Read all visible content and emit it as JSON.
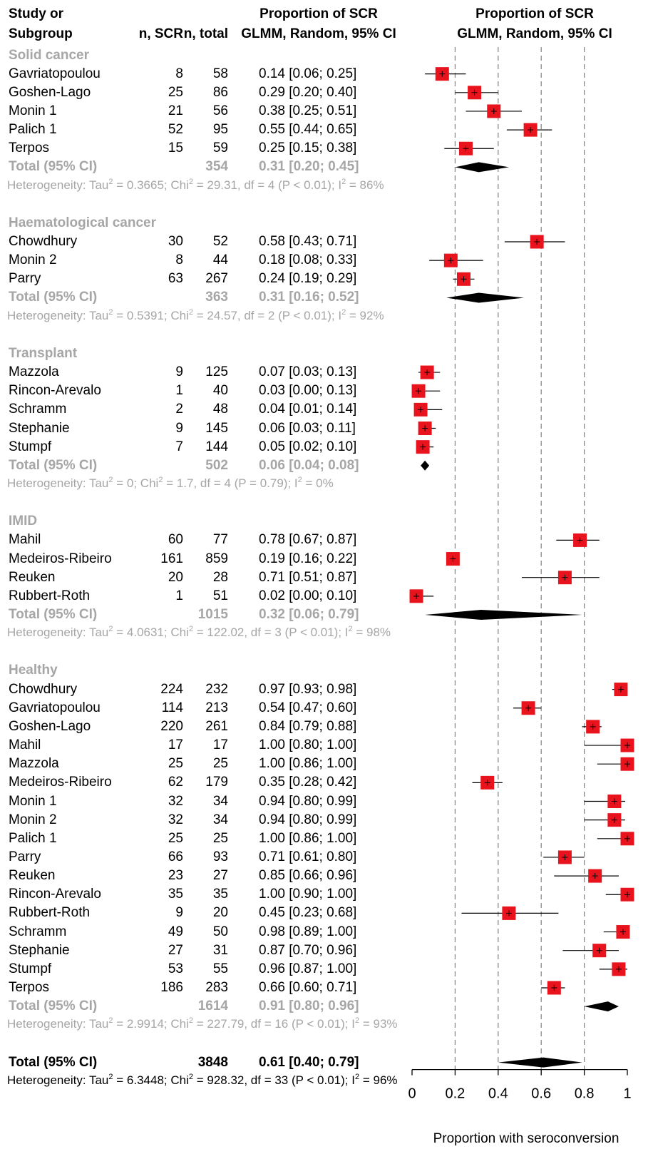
{
  "header": {
    "study_line1": "Study or",
    "study_line2": "Subgroup",
    "n_scr": "n, SCR",
    "n_total": "n, total",
    "prop_line1": "Proportion of SCR",
    "prop_line2": "GLMM, Random, 95% CI",
    "plot_line1": "Proportion of SCR",
    "plot_line2": "GLMM, Random, 95% CI"
  },
  "chart_data": {
    "type": "forest",
    "xlabel": "Proportion with seroconversion",
    "xlim": [
      0,
      1
    ],
    "xticks": [
      "0",
      "0.2",
      "0.4",
      "0.6",
      "0.8",
      "1"
    ],
    "reference_lines": [
      0.2,
      0.4,
      0.6,
      0.8
    ],
    "subgroups": [
      {
        "name": "Solid cancer",
        "studies": [
          {
            "study": "Gavriatopoulou",
            "n_scr": "8",
            "n_total": "58",
            "ci_text": "0.14 [0.06; 0.25]",
            "est": 0.14,
            "lo": 0.06,
            "hi": 0.25
          },
          {
            "study": "Goshen-Lago",
            "n_scr": "25",
            "n_total": "86",
            "ci_text": "0.29 [0.20; 0.40]",
            "est": 0.29,
            "lo": 0.2,
            "hi": 0.4
          },
          {
            "study": "Monin 1",
            "n_scr": "21",
            "n_total": "56",
            "ci_text": "0.38 [0.25; 0.51]",
            "est": 0.38,
            "lo": 0.25,
            "hi": 0.51
          },
          {
            "study": "Palich 1",
            "n_scr": "52",
            "n_total": "95",
            "ci_text": "0.55 [0.44; 0.65]",
            "est": 0.55,
            "lo": 0.44,
            "hi": 0.65
          },
          {
            "study": "Terpos",
            "n_scr": "15",
            "n_total": "59",
            "ci_text": "0.25 [0.15; 0.38]",
            "est": 0.25,
            "lo": 0.15,
            "hi": 0.38
          }
        ],
        "total": {
          "label": "Total (95% CI)",
          "n_total": "354",
          "ci_text": "0.31 [0.20; 0.45]",
          "est": 0.31,
          "lo": 0.2,
          "hi": 0.45
        },
        "het": {
          "tau": "0.3665",
          "chi": "29.31",
          "df": "4",
          "p": "P < 0.01",
          "i2": "86%"
        }
      },
      {
        "name": "Haematological cancer",
        "studies": [
          {
            "study": "Chowdhury",
            "n_scr": "30",
            "n_total": "52",
            "ci_text": "0.58 [0.43; 0.71]",
            "est": 0.58,
            "lo": 0.43,
            "hi": 0.71
          },
          {
            "study": "Monin 2",
            "n_scr": "8",
            "n_total": "44",
            "ci_text": "0.18 [0.08; 0.33]",
            "est": 0.18,
            "lo": 0.08,
            "hi": 0.33
          },
          {
            "study": "Parry",
            "n_scr": "63",
            "n_total": "267",
            "ci_text": "0.24 [0.19; 0.29]",
            "est": 0.24,
            "lo": 0.19,
            "hi": 0.29
          }
        ],
        "total": {
          "label": "Total (95% CI)",
          "n_total": "363",
          "ci_text": "0.31 [0.16; 0.52]",
          "est": 0.31,
          "lo": 0.16,
          "hi": 0.52
        },
        "het": {
          "tau": "0.5391",
          "chi": "24.57",
          "df": "2",
          "p": "P < 0.01",
          "i2": "92%"
        }
      },
      {
        "name": "Transplant",
        "studies": [
          {
            "study": "Mazzola",
            "n_scr": "9",
            "n_total": "125",
            "ci_text": "0.07 [0.03; 0.13]",
            "est": 0.07,
            "lo": 0.03,
            "hi": 0.13
          },
          {
            "study": "Rincon-Arevalo",
            "n_scr": "1",
            "n_total": "40",
            "ci_text": "0.03 [0.00; 0.13]",
            "est": 0.03,
            "lo": 0.0,
            "hi": 0.13
          },
          {
            "study": "Schramm",
            "n_scr": "2",
            "n_total": "48",
            "ci_text": "0.04 [0.01; 0.14]",
            "est": 0.04,
            "lo": 0.01,
            "hi": 0.14
          },
          {
            "study": "Stephanie",
            "n_scr": "9",
            "n_total": "145",
            "ci_text": "0.06 [0.03; 0.11]",
            "est": 0.06,
            "lo": 0.03,
            "hi": 0.11
          },
          {
            "study": "Stumpf",
            "n_scr": "7",
            "n_total": "144",
            "ci_text": "0.05 [0.02; 0.10]",
            "est": 0.05,
            "lo": 0.02,
            "hi": 0.1
          }
        ],
        "total": {
          "label": "Total (95% CI)",
          "n_total": "502",
          "ci_text": "0.06 [0.04; 0.08]",
          "est": 0.06,
          "lo": 0.04,
          "hi": 0.08
        },
        "het": {
          "tau": "0",
          "chi": "1.7",
          "df": "4",
          "p": "P = 0.79",
          "i2": "0%"
        }
      },
      {
        "name": "IMID",
        "studies": [
          {
            "study": "Mahil",
            "n_scr": "60",
            "n_total": "77",
            "ci_text": "0.78 [0.67; 0.87]",
            "est": 0.78,
            "lo": 0.67,
            "hi": 0.87
          },
          {
            "study": "Medeiros-Ribeiro",
            "n_scr": "161",
            "n_total": "859",
            "ci_text": "0.19 [0.16; 0.22]",
            "est": 0.19,
            "lo": 0.16,
            "hi": 0.22
          },
          {
            "study": "Reuken",
            "n_scr": "20",
            "n_total": "28",
            "ci_text": "0.71 [0.51; 0.87]",
            "est": 0.71,
            "lo": 0.51,
            "hi": 0.87
          },
          {
            "study": "Rubbert-Roth",
            "n_scr": "1",
            "n_total": "51",
            "ci_text": "0.02 [0.00; 0.10]",
            "est": 0.02,
            "lo": 0.0,
            "hi": 0.1
          }
        ],
        "total": {
          "label": "Total (95% CI)",
          "n_total": "1015",
          "ci_text": "0.32 [0.06; 0.79]",
          "est": 0.32,
          "lo": 0.06,
          "hi": 0.79
        },
        "het": {
          "tau": "4.0631",
          "chi": "122.02",
          "df": "3",
          "p": "P < 0.01",
          "i2": "98%"
        }
      },
      {
        "name": "Healthy",
        "studies": [
          {
            "study": "Chowdhury",
            "n_scr": "224",
            "n_total": "232",
            "ci_text": "0.97 [0.93; 0.98]",
            "est": 0.97,
            "lo": 0.93,
            "hi": 0.98
          },
          {
            "study": "Gavriatopoulou",
            "n_scr": "114",
            "n_total": "213",
            "ci_text": "0.54 [0.47; 0.60]",
            "est": 0.54,
            "lo": 0.47,
            "hi": 0.6
          },
          {
            "study": "Goshen-Lago",
            "n_scr": "220",
            "n_total": "261",
            "ci_text": "0.84 [0.79; 0.88]",
            "est": 0.84,
            "lo": 0.79,
            "hi": 0.88
          },
          {
            "study": "Mahil",
            "n_scr": "17",
            "n_total": "17",
            "ci_text": "1.00 [0.80; 1.00]",
            "est": 1.0,
            "lo": 0.8,
            "hi": 1.0
          },
          {
            "study": "Mazzola",
            "n_scr": "25",
            "n_total": "25",
            "ci_text": "1.00 [0.86; 1.00]",
            "est": 1.0,
            "lo": 0.86,
            "hi": 1.0
          },
          {
            "study": "Medeiros-Ribeiro",
            "n_scr": "62",
            "n_total": "179",
            "ci_text": "0.35 [0.28; 0.42]",
            "est": 0.35,
            "lo": 0.28,
            "hi": 0.42
          },
          {
            "study": "Monin 1",
            "n_scr": "32",
            "n_total": "34",
            "ci_text": "0.94 [0.80; 0.99]",
            "est": 0.94,
            "lo": 0.8,
            "hi": 0.99
          },
          {
            "study": "Monin 2",
            "n_scr": "32",
            "n_total": "34",
            "ci_text": "0.94 [0.80; 0.99]",
            "est": 0.94,
            "lo": 0.8,
            "hi": 0.99
          },
          {
            "study": "Palich 1",
            "n_scr": "25",
            "n_total": "25",
            "ci_text": "1.00 [0.86; 1.00]",
            "est": 1.0,
            "lo": 0.86,
            "hi": 1.0
          },
          {
            "study": "Parry",
            "n_scr": "66",
            "n_total": "93",
            "ci_text": "0.71 [0.61; 0.80]",
            "est": 0.71,
            "lo": 0.61,
            "hi": 0.8
          },
          {
            "study": "Reuken",
            "n_scr": "23",
            "n_total": "27",
            "ci_text": "0.85 [0.66; 0.96]",
            "est": 0.85,
            "lo": 0.66,
            "hi": 0.96
          },
          {
            "study": "Rincon-Arevalo",
            "n_scr": "35",
            "n_total": "35",
            "ci_text": "1.00 [0.90; 1.00]",
            "est": 1.0,
            "lo": 0.9,
            "hi": 1.0
          },
          {
            "study": "Rubbert-Roth",
            "n_scr": "9",
            "n_total": "20",
            "ci_text": "0.45 [0.23; 0.68]",
            "est": 0.45,
            "lo": 0.23,
            "hi": 0.68
          },
          {
            "study": "Schramm",
            "n_scr": "49",
            "n_total": "50",
            "ci_text": "0.98 [0.89; 1.00]",
            "est": 0.98,
            "lo": 0.89,
            "hi": 1.0
          },
          {
            "study": "Stephanie",
            "n_scr": "27",
            "n_total": "31",
            "ci_text": "0.87 [0.70; 0.96]",
            "est": 0.87,
            "lo": 0.7,
            "hi": 0.96
          },
          {
            "study": "Stumpf",
            "n_scr": "53",
            "n_total": "55",
            "ci_text": "0.96 [0.87; 1.00]",
            "est": 0.96,
            "lo": 0.87,
            "hi": 1.0
          },
          {
            "study": "Terpos",
            "n_scr": "186",
            "n_total": "283",
            "ci_text": "0.66 [0.60; 0.71]",
            "est": 0.66,
            "lo": 0.6,
            "hi": 0.71
          }
        ],
        "total": {
          "label": "Total (95% CI)",
          "n_total": "1614",
          "ci_text": "0.91 [0.80; 0.96]",
          "est": 0.91,
          "lo": 0.8,
          "hi": 0.96
        },
        "het": {
          "tau": "2.9914",
          "chi": "227.79",
          "df": "16",
          "p": "P < 0.01",
          "i2": "93%"
        }
      }
    ],
    "overall": {
      "label": "Total (95% CI)",
      "n_total": "3848",
      "ci_text": "0.61 [0.40; 0.79]",
      "est": 0.61,
      "lo": 0.4,
      "hi": 0.79,
      "het": {
        "tau": "6.3448",
        "chi": "928.32",
        "df": "33",
        "p": "P < 0.01",
        "i2": "96%"
      }
    },
    "colors": {
      "box": "#e8131c",
      "diamond": "#000000",
      "subgroup_text": "#a6a6a6",
      "ref_line": "#808080"
    }
  }
}
